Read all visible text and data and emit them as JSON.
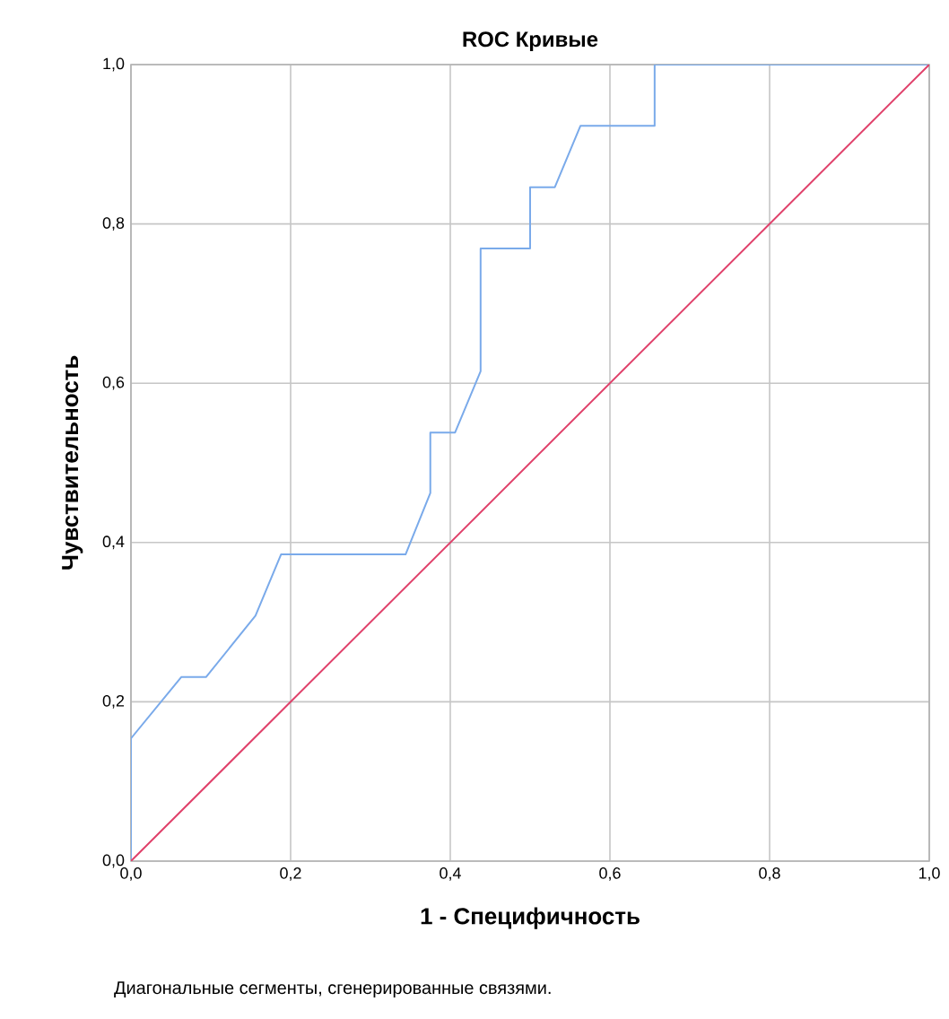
{
  "chart_data": {
    "type": "line",
    "title": "ROC Кривые",
    "xlabel": "1 - Специфичность",
    "ylabel": "Чувствительность",
    "xlim": [
      0,
      1
    ],
    "ylim": [
      0,
      1
    ],
    "xticks": [
      {
        "value": 0,
        "label": "0,0"
      },
      {
        "value": 0.2,
        "label": "0,2"
      },
      {
        "value": 0.4,
        "label": "0,4"
      },
      {
        "value": 0.6,
        "label": "0,6"
      },
      {
        "value": 0.8,
        "label": "0,8"
      },
      {
        "value": 1,
        "label": "1,0"
      }
    ],
    "yticks": [
      {
        "value": 0,
        "label": "0,0"
      },
      {
        "value": 0.2,
        "label": "0,2"
      },
      {
        "value": 0.4,
        "label": "0,4"
      },
      {
        "value": 0.6,
        "label": "0,6"
      },
      {
        "value": 0.8,
        "label": "0,8"
      },
      {
        "value": 1,
        "label": "1,0"
      }
    ],
    "grid": true,
    "marker": "none",
    "line_style": "solid",
    "series": [
      {
        "color": "#7aaaea",
        "x": [
          0,
          0,
          0.063,
          0.094,
          0.156,
          0.188,
          0.344,
          0.375,
          0.375,
          0.406,
          0.438,
          0.438,
          0.5,
          0.5,
          0.531,
          0.563,
          0.656,
          0.656,
          1
        ],
        "values": [
          0,
          0.154,
          0.231,
          0.231,
          0.308,
          0.385,
          0.385,
          0.462,
          0.538,
          0.538,
          0.615,
          0.769,
          0.769,
          0.846,
          0.846,
          0.923,
          0.923,
          1,
          1
        ]
      },
      {
        "color": "#e0406a",
        "x": [
          0,
          1
        ],
        "values": [
          0,
          1
        ]
      }
    ],
    "annotations": [
      "Диагональные сегменты, сгенерированные связями."
    ]
  }
}
